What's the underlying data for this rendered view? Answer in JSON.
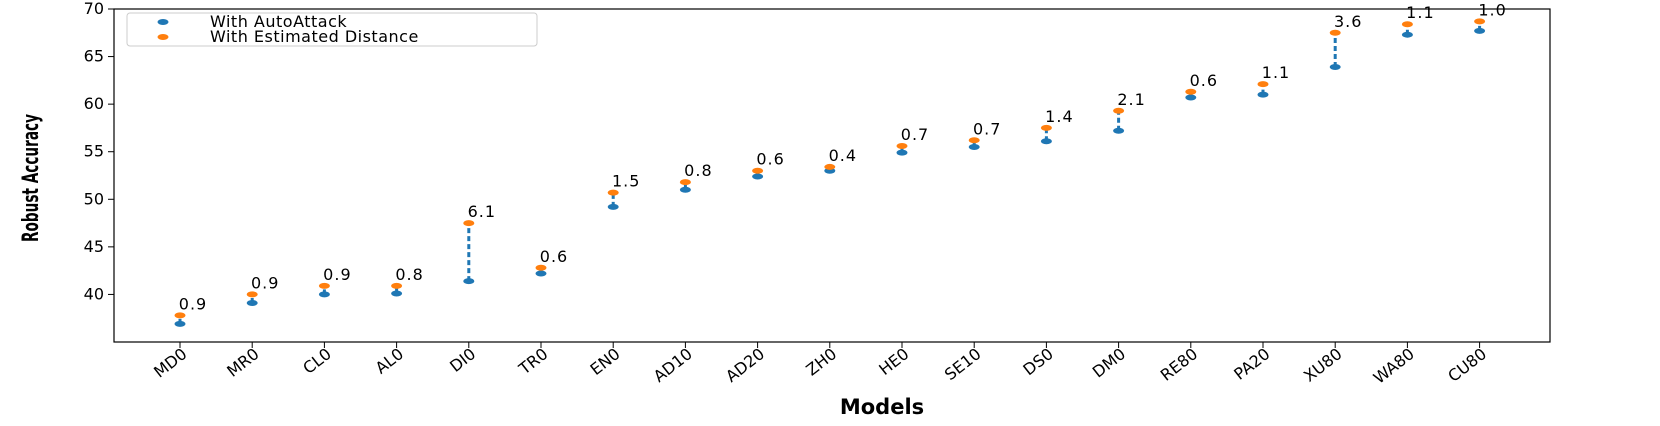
{
  "chart_data": {
    "type": "scatter",
    "xlabel": "Models",
    "ylabel": "Robust Accuracy",
    "ylim": [
      35,
      70
    ],
    "yticks": [
      40,
      45,
      50,
      55,
      60,
      65,
      70
    ],
    "grid": false,
    "legend_position": "top-left",
    "categories": [
      "MD0",
      "MR0",
      "CL0",
      "AL0",
      "DI0",
      "TR0",
      "EN0",
      "AD10",
      "AD20",
      "ZH0",
      "HE0",
      "SE10",
      "DS0",
      "DM0",
      "RE80",
      "PA20",
      "XU80",
      "WA80",
      "CU80"
    ],
    "series": [
      {
        "name": "With AutoAttack",
        "color": "#1f77b4",
        "values": [
          36.9,
          39.1,
          40.0,
          40.1,
          41.4,
          42.2,
          49.2,
          51.0,
          52.4,
          53.0,
          54.9,
          55.5,
          56.1,
          57.2,
          60.7,
          61.0,
          63.9,
          67.3,
          67.7
        ]
      },
      {
        "name": "With Estimated Distance",
        "color": "#ff7f0e",
        "values": [
          37.8,
          40.0,
          40.9,
          40.9,
          47.5,
          42.8,
          50.7,
          51.8,
          53.0,
          53.4,
          55.6,
          56.2,
          57.5,
          59.3,
          61.3,
          62.1,
          67.5,
          68.4,
          68.7
        ]
      }
    ],
    "annotations": [
      "0.9",
      "0.9",
      "0.9",
      "0.8",
      "6.1",
      "0.6",
      "1.5",
      "0.8",
      "0.6",
      "0.4",
      "0.7",
      "0.7",
      "1.4",
      "2.1",
      "0.6",
      "1.1",
      "3.6",
      "1.1",
      "1.0"
    ]
  }
}
